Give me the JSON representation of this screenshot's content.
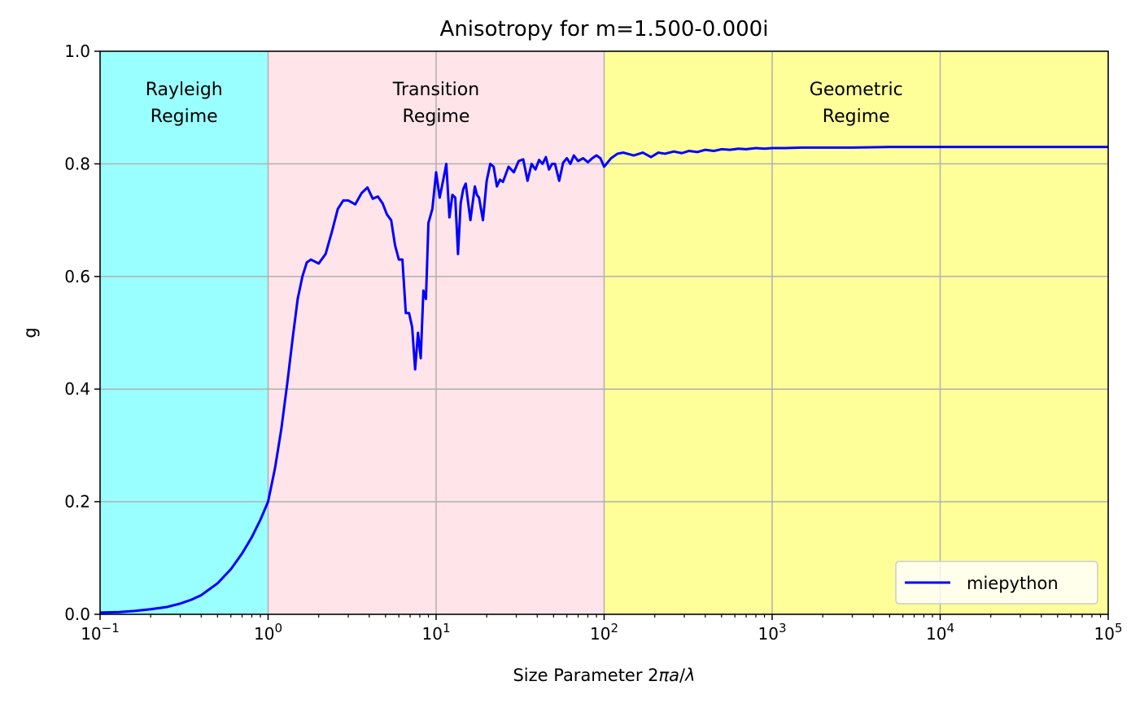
{
  "chart_data": {
    "type": "line",
    "title": "Anisotropy for m=1.500-0.000i",
    "xlabel": "Size Parameter 2πa/λ",
    "xlabel_prefix": "Size Parameter 2",
    "xlabel_italic": "πa",
    "xlabel_mid": "/",
    "xlabel_lambda": "λ",
    "ylabel": "g",
    "xscale": "log",
    "xlim": [
      0.1,
      100000
    ],
    "ylim": [
      0.0,
      1.0
    ],
    "grid": true,
    "legend_position": "lower right",
    "x_ticks": [
      {
        "value": 0.1,
        "base": "10",
        "exp": "−1"
      },
      {
        "value": 1,
        "base": "10",
        "exp": "0"
      },
      {
        "value": 10,
        "base": "10",
        "exp": "1"
      },
      {
        "value": 100,
        "base": "10",
        "exp": "2"
      },
      {
        "value": 1000,
        "base": "10",
        "exp": "3"
      },
      {
        "value": 10000,
        "base": "10",
        "exp": "4"
      },
      {
        "value": 100000,
        "base": "10",
        "exp": "5"
      }
    ],
    "y_ticks": [
      {
        "value": 0.0,
        "label": "0.0"
      },
      {
        "value": 0.2,
        "label": "0.2"
      },
      {
        "value": 0.4,
        "label": "0.4"
      },
      {
        "value": 0.6,
        "label": "0.6"
      },
      {
        "value": 0.8,
        "label": "0.8"
      },
      {
        "value": 1.0,
        "label": "1.0"
      }
    ],
    "regions": [
      {
        "line1": "Rayleigh",
        "line2": "Regime",
        "x_start": 0.1,
        "x_end": 1,
        "color": "#99ffff"
      },
      {
        "line1": "Transition",
        "line2": "Regime",
        "x_start": 1,
        "x_end": 100,
        "color": "#ffe4e9"
      },
      {
        "line1": "Geometric",
        "line2": "Regime",
        "x_start": 100,
        "x_end": 100000,
        "color": "#ffff99"
      }
    ],
    "series": [
      {
        "name": "miepython",
        "color": "#0000ff",
        "x": [
          0.1,
          0.13,
          0.16,
          0.2,
          0.25,
          0.3,
          0.35,
          0.4,
          0.5,
          0.6,
          0.7,
          0.8,
          0.9,
          1.0,
          1.1,
          1.2,
          1.3,
          1.4,
          1.5,
          1.6,
          1.7,
          1.8,
          2.0,
          2.2,
          2.4,
          2.6,
          2.8,
          3.0,
          3.3,
          3.6,
          3.9,
          4.2,
          4.5,
          4.8,
          5.1,
          5.4,
          5.7,
          6.0,
          6.3,
          6.6,
          6.9,
          7.2,
          7.5,
          7.8,
          8.1,
          8.4,
          8.7,
          9.0,
          9.5,
          10.0,
          10.5,
          11.0,
          11.5,
          12.0,
          12.5,
          13.0,
          13.5,
          14.0,
          14.5,
          15.0,
          16.0,
          17.0,
          17.5,
          18.0,
          19.0,
          20.0,
          21.0,
          22.0,
          23.0,
          24.0,
          25.0,
          27.0,
          29.0,
          31.0,
          33.0,
          35.0,
          37.0,
          39.0,
          41.0,
          43.0,
          45.0,
          47.0,
          49.0,
          51.0,
          54.0,
          57.0,
          60.0,
          63.0,
          66.0,
          70.0,
          75.0,
          80.0,
          85.0,
          90.0,
          95.0,
          100.0,
          110.0,
          120.0,
          130.0,
          150.0,
          170.0,
          190.0,
          210.0,
          230.0,
          260.0,
          290.0,
          320.0,
          360.0,
          400.0,
          450.0,
          500.0,
          560.0,
          630.0,
          700.0,
          800.0,
          900.0,
          1000.0,
          1200.0,
          1500.0,
          2000.0,
          3000.0,
          5000.0,
          8000.0,
          10000.0,
          20000.0,
          50000.0,
          100000.0
        ],
        "y": [
          0.003,
          0.004,
          0.006,
          0.009,
          0.013,
          0.019,
          0.026,
          0.034,
          0.055,
          0.08,
          0.108,
          0.137,
          0.168,
          0.2,
          0.26,
          0.33,
          0.41,
          0.49,
          0.56,
          0.6,
          0.625,
          0.63,
          0.623,
          0.64,
          0.68,
          0.72,
          0.735,
          0.735,
          0.728,
          0.748,
          0.758,
          0.738,
          0.742,
          0.73,
          0.71,
          0.7,
          0.655,
          0.63,
          0.63,
          0.535,
          0.535,
          0.51,
          0.435,
          0.5,
          0.455,
          0.575,
          0.56,
          0.695,
          0.72,
          0.785,
          0.74,
          0.77,
          0.8,
          0.705,
          0.745,
          0.74,
          0.64,
          0.73,
          0.755,
          0.765,
          0.7,
          0.76,
          0.745,
          0.74,
          0.7,
          0.77,
          0.8,
          0.795,
          0.76,
          0.772,
          0.768,
          0.795,
          0.785,
          0.805,
          0.808,
          0.77,
          0.8,
          0.79,
          0.807,
          0.8,
          0.812,
          0.79,
          0.8,
          0.8,
          0.77,
          0.802,
          0.81,
          0.8,
          0.815,
          0.805,
          0.81,
          0.803,
          0.81,
          0.815,
          0.81,
          0.795,
          0.81,
          0.818,
          0.82,
          0.815,
          0.82,
          0.812,
          0.82,
          0.818,
          0.822,
          0.819,
          0.823,
          0.821,
          0.825,
          0.823,
          0.826,
          0.825,
          0.827,
          0.826,
          0.828,
          0.827,
          0.828,
          0.828,
          0.829,
          0.829,
          0.829,
          0.83,
          0.83,
          0.83,
          0.83,
          0.83,
          0.83
        ]
      }
    ]
  }
}
